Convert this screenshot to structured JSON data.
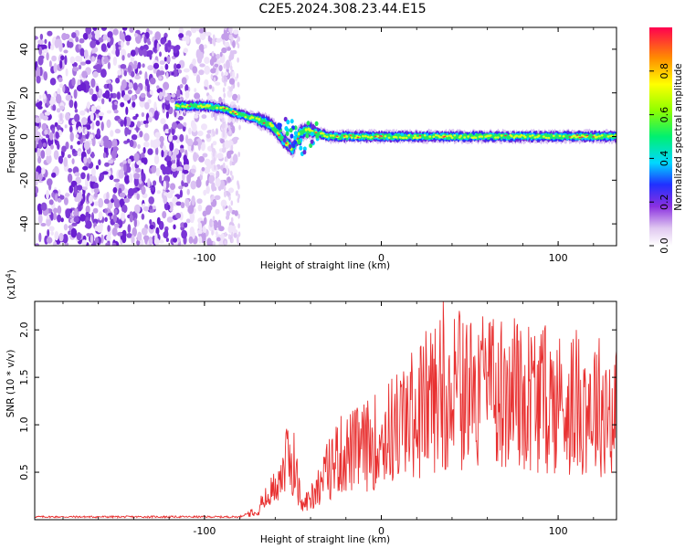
{
  "title": "C2E5.2024.308.23.44.E15",
  "colors": {
    "snr_line": "#e83030",
    "axes": "#000000",
    "background": "#ffffff"
  },
  "chart_data": [
    {
      "type": "heatmap",
      "xlabel": "Height of straight line (km)",
      "ylabel": "Frequency (Hz)",
      "xlim": [
        -196,
        133
      ],
      "ylim": [
        -50,
        50
      ],
      "x_ticks": [
        -100,
        0,
        100
      ],
      "y_ticks": [
        -40,
        -20,
        0,
        20,
        40
      ],
      "colorbar": {
        "label": "Normalized spectral amplitude",
        "range": [
          0,
          1
        ],
        "ticks": [
          "0.0",
          "0.2",
          "0.4",
          "0.6",
          "0.8"
        ]
      },
      "ridge": {
        "height_km": [
          -116,
          -100,
          -90,
          -80,
          -70,
          -62,
          -55,
          -50,
          -46,
          -40,
          -30,
          -20,
          -10,
          0,
          20,
          40,
          60,
          80,
          100,
          120,
          133
        ],
        "frequency_hz": [
          14,
          14,
          13,
          10,
          8,
          5,
          -2,
          -6,
          2,
          3,
          0,
          0,
          0,
          0,
          0,
          0,
          0,
          0,
          0,
          0,
          0
        ]
      },
      "noise_region_km": [
        -196,
        -82
      ]
    },
    {
      "type": "line",
      "xlabel": "Height of straight line (km)",
      "ylabel": "SNR (10 * v/v)",
      "y_multiplier": "(x10^4)",
      "xlim": [
        -196,
        133
      ],
      "ylim": [
        0,
        2.3
      ],
      "x_ticks": [
        -100,
        0,
        100
      ],
      "y_ticks": [
        "0.5",
        "1.0",
        "1.5",
        "2.0"
      ],
      "envelope": {
        "height_km": [
          -196,
          -80,
          -70,
          -62,
          -55,
          -50,
          -45,
          -40,
          -30,
          -25,
          -10,
          0,
          10,
          20,
          35,
          40,
          60,
          80,
          100,
          120,
          133
        ],
        "snr_x1e4": [
          0.03,
          0.03,
          0.12,
          0.3,
          0.6,
          0.7,
          0.15,
          0.25,
          0.55,
          0.7,
          0.8,
          0.9,
          1.05,
          1.2,
          1.5,
          1.45,
          1.4,
          1.4,
          1.3,
          1.3,
          1.2
        ]
      },
      "peak": {
        "height_km": 35,
        "snr_x1e4": 2.3
      }
    }
  ]
}
